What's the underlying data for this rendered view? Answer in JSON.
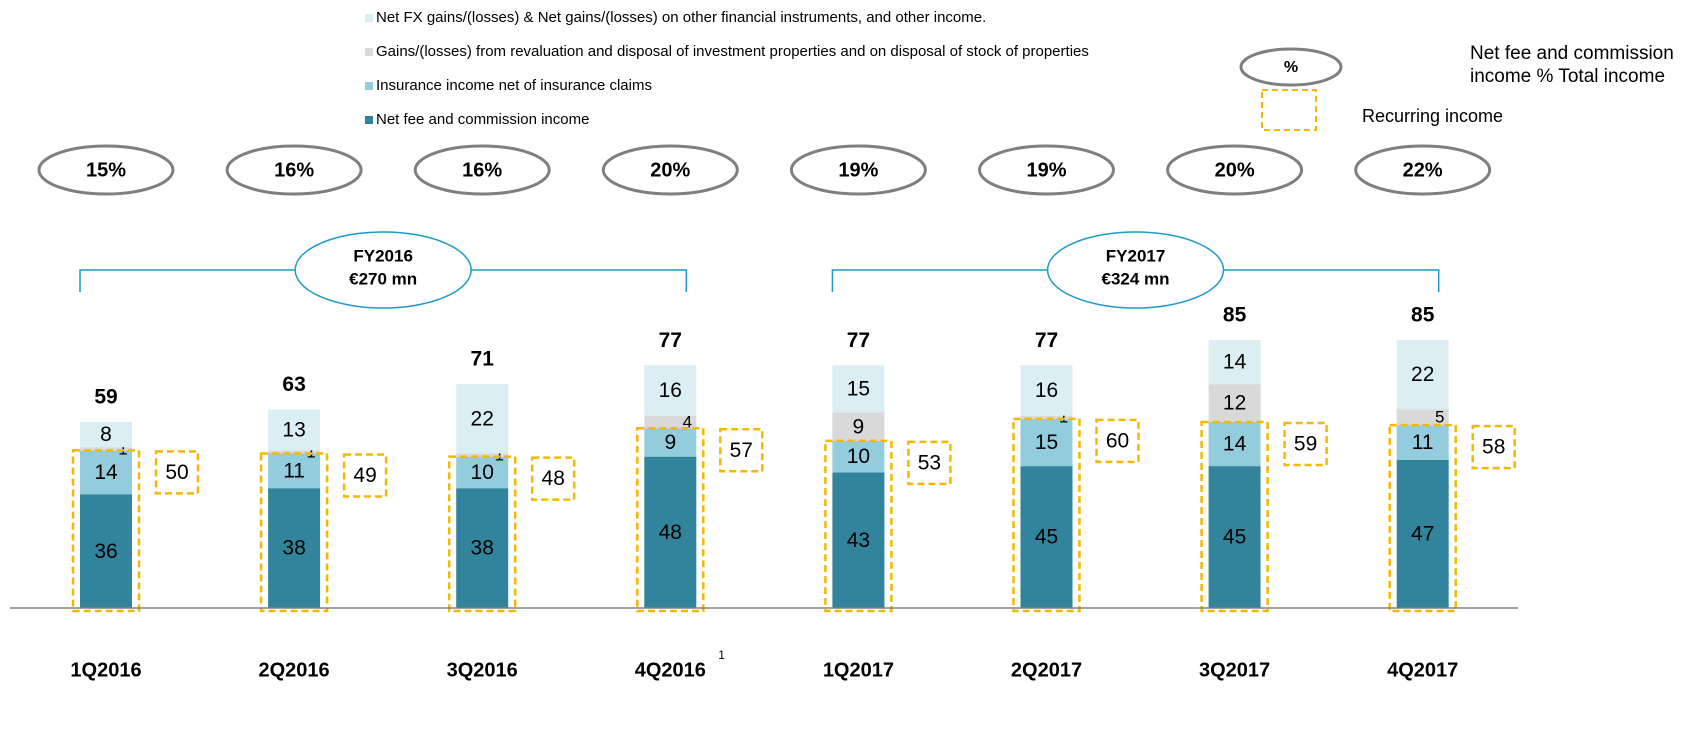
{
  "chart_data": {
    "type": "stacked_bar",
    "categories": [
      "1Q2016",
      "2Q2016",
      "3Q2016",
      "4Q2016",
      "1Q2017",
      "2Q2017",
      "3Q2017",
      "4Q2017"
    ],
    "category_footnotes": [
      null,
      null,
      null,
      "1",
      null,
      null,
      null,
      null
    ],
    "series": [
      {
        "name": "Net fee and commission income",
        "color": "#31849b",
        "values": [
          36,
          38,
          38,
          48,
          43,
          45,
          45,
          47
        ]
      },
      {
        "name": "Insurance income net of insurance claims",
        "color": "#93cddd",
        "values": [
          14,
          11,
          10,
          9,
          10,
          15,
          14,
          11
        ]
      },
      {
        "name": "Gains/(losses) from revaluation and disposal of investment properties and on disposal of stock of properties",
        "color": "#d9d9d9",
        "values": [
          1,
          1,
          1,
          4,
          9,
          1,
          12,
          5
        ]
      },
      {
        "name": "Net FX gains/(losses)  & Net gains/(losses) on other financial instruments, and other income.",
        "color": "#dbeef4",
        "values": [
          8,
          13,
          22,
          16,
          15,
          16,
          14,
          22
        ]
      }
    ],
    "totals": [
      59,
      63,
      71,
      77,
      77,
      77,
      85,
      85
    ],
    "recurring": {
      "name": "Recurring income",
      "color": "#f5b800",
      "values": [
        50,
        49,
        48,
        57,
        53,
        60,
        59,
        58
      ]
    },
    "fee_share": {
      "name": "Net fee and commission income % Total income",
      "symbol": "%",
      "values": [
        15,
        16,
        16,
        20,
        19,
        19,
        20,
        22
      ],
      "value_labels": [
        "15%",
        "16%",
        "16%",
        "20%",
        "19%",
        "19%",
        "20%",
        "22%"
      ]
    },
    "annotations": [
      {
        "label": "FY2016",
        "text": "€270 mn"
      },
      {
        "label": "FY2017",
        "text": "€324 mn"
      }
    ]
  }
}
